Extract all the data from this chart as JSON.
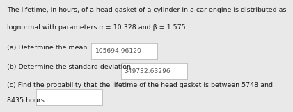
{
  "bg_color": "#e9e9e9",
  "text_color": "#1a1a1a",
  "answer_box_color": "#ffffff",
  "answer_box_edge": "#bbbbbb",
  "answer_color": "#555555",
  "line1": "The lifetime, in hours, of a head gasket of a cylinder in a car engine is distributed as",
  "line2": "lognormal with parameters α = 10.328 and β = 1.575.",
  "part_a_label": "(a) Determine the mean.",
  "part_a_answer": "105694.96120",
  "part_b_label": "(b) Determine the standard deviation.",
  "part_b_answer": "349732.63296",
  "part_c_line1": "(c) Find the probability that the lifetime of the head gasket is between 5748 and",
  "part_c_line2": "8435 hours.",
  "font_size": 6.8,
  "answer_font_size": 6.6
}
